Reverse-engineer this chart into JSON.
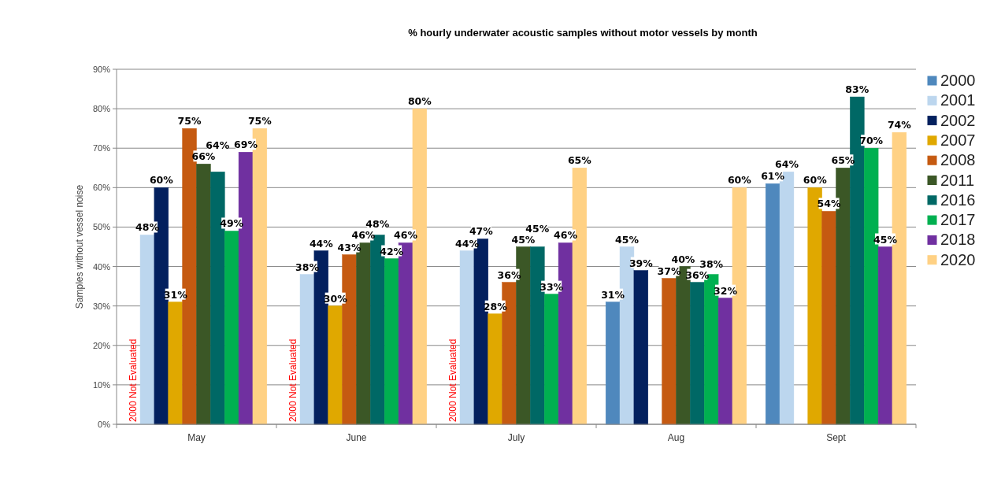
{
  "chart_data": {
    "type": "bar",
    "title": "% hourly underwater acoustic samples without motor vessels by month",
    "ylabel": "Samples without vessel noise",
    "categories": [
      "May",
      "June",
      "July",
      "Aug",
      "Sept"
    ],
    "series": [
      {
        "name": "2000",
        "color": "#4f88bd",
        "values": [
          null,
          null,
          null,
          31,
          61
        ],
        "value_labels": [
          null,
          null,
          null,
          "31%",
          "61%"
        ]
      },
      {
        "name": "2001",
        "color": "#bcd6ee",
        "values": [
          48,
          38,
          44,
          45,
          64
        ],
        "value_labels": [
          "48%",
          "38%",
          "44%",
          "45%",
          "64%"
        ]
      },
      {
        "name": "2002",
        "color": "#03205e",
        "values": [
          60,
          44,
          47,
          39,
          null
        ],
        "value_labels": [
          "60%",
          "44%",
          "47%",
          "39%",
          null
        ]
      },
      {
        "name": "2007",
        "color": "#e0a800",
        "values": [
          31,
          30,
          28,
          null,
          60
        ],
        "value_labels": [
          "31%",
          "30%",
          "28%",
          null,
          "60%"
        ]
      },
      {
        "name": "2008",
        "color": "#c55a11",
        "values": [
          75,
          43,
          36,
          37,
          54
        ],
        "value_labels": [
          "75%",
          "43%",
          "36%",
          "37%",
          "54%"
        ]
      },
      {
        "name": "2011",
        "color": "#3b5726",
        "values": [
          66,
          46,
          45,
          40,
          65
        ],
        "value_labels": [
          "66%",
          "46%",
          "45%",
          "40%",
          "65%"
        ]
      },
      {
        "name": "2016",
        "color": "#006865",
        "values": [
          64,
          48,
          45,
          36,
          83
        ],
        "value_labels": [
          "64%",
          "48%",
          "45%",
          "36%",
          "83%"
        ]
      },
      {
        "name": "2017",
        "color": "#00b050",
        "values": [
          49,
          42,
          33,
          38,
          70
        ],
        "value_labels": [
          "49%",
          "42%",
          "33%",
          "38%",
          "70%"
        ]
      },
      {
        "name": "2018",
        "color": "#7030a0",
        "values": [
          69,
          46,
          46,
          32,
          45
        ],
        "value_labels": [
          "69%",
          "46%",
          "46%",
          "32%",
          "45%"
        ]
      },
      {
        "name": "2020",
        "color": "#ffd184",
        "values": [
          75,
          80,
          65,
          60,
          74
        ],
        "value_labels": [
          "75%",
          "80%",
          "65%",
          "60%",
          "74%"
        ]
      }
    ],
    "annotations": [
      "2000 Not Evaluated",
      "2000 Not Evaluated",
      "2000 Not Evaluated"
    ],
    "ylim": [
      0,
      90
    ],
    "yticks": [
      {
        "value": 0,
        "label": "0%"
      },
      {
        "value": 10,
        "label": "10%"
      },
      {
        "value": 20,
        "label": "20%"
      },
      {
        "value": 30,
        "label": "30%"
      },
      {
        "value": 40,
        "label": "40%"
      },
      {
        "value": 50,
        "label": "50%"
      },
      {
        "value": 60,
        "label": "60%"
      },
      {
        "value": 70,
        "label": "70%"
      },
      {
        "value": 80,
        "label": "80%"
      },
      {
        "value": 90,
        "label": "90%"
      }
    ],
    "grid": "y",
    "legend": "right"
  }
}
